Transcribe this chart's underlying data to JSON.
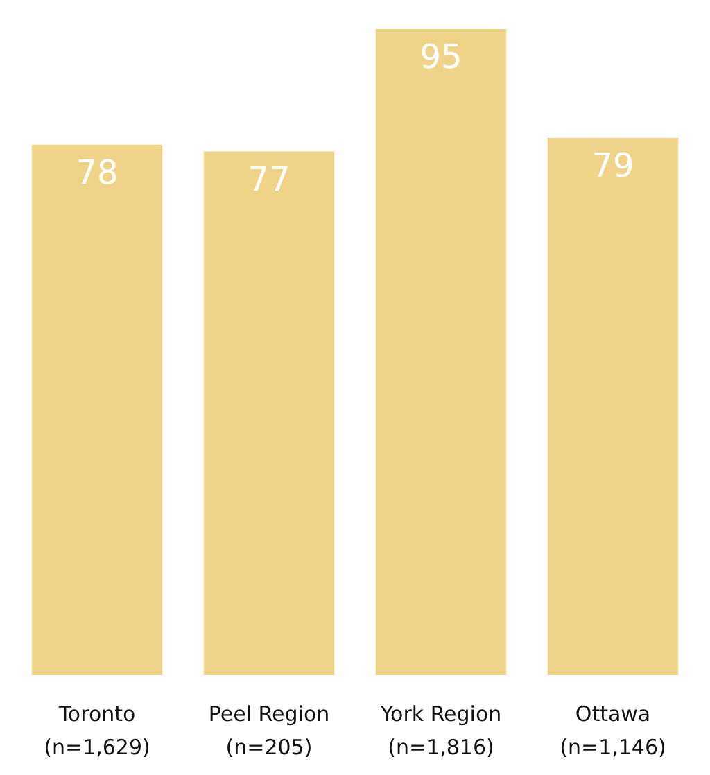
{
  "chart_data": {
    "type": "bar",
    "categories": [
      "Toronto\n(n=1,629)",
      "Peel Region\n(n=205)",
      "York Region\n(n=1,816)",
      "Ottawa\n(n=1,146)"
    ],
    "values": [
      78,
      77,
      95,
      79
    ],
    "color": "#efd388",
    "data_labels": true
  }
}
